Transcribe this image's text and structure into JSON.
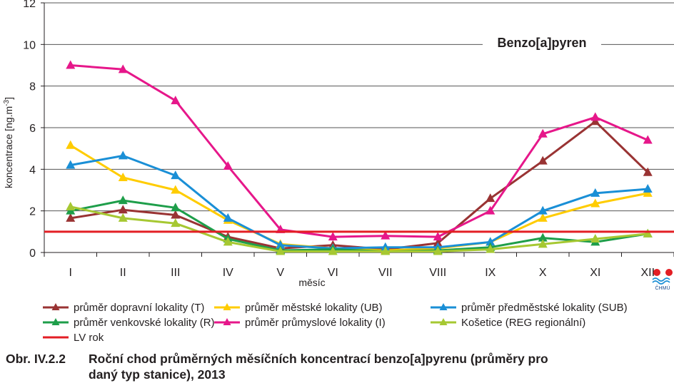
{
  "chart_data": {
    "type": "line",
    "annotation": "Benzo[a]pyren",
    "xlabel": "měsíc",
    "ylabel": "koncentrace [ng.m-3]",
    "ylabel_base": "koncentrace [ng.m",
    "ylabel_exp": "-3",
    "ylabel_close": "]",
    "ylim": [
      0,
      12
    ],
    "yticks": [
      0,
      2,
      4,
      6,
      8,
      10,
      12
    ],
    "grid": "horizontal",
    "legend_position": "bottom",
    "categories": [
      "I",
      "II",
      "III",
      "IV",
      "V",
      "VI",
      "VII",
      "VIII",
      "IX",
      "X",
      "XI",
      "XII"
    ],
    "series": [
      {
        "name": "průměr dopravní lokality (T)",
        "color": "#993333",
        "values": [
          1.65,
          2.05,
          1.8,
          0.75,
          0.2,
          0.35,
          0.15,
          0.45,
          2.6,
          4.4,
          6.3,
          3.85
        ]
      },
      {
        "name": "průměr městské lokality (UB)",
        "color": "#ffcc00",
        "values": [
          5.15,
          3.6,
          3.0,
          1.55,
          0.4,
          0.2,
          0.1,
          0.2,
          0.5,
          1.65,
          2.35,
          2.85
        ]
      },
      {
        "name": "průměr předměstské lokality (SUB)",
        "color": "#1a8fd6",
        "values": [
          4.2,
          4.65,
          3.7,
          1.65,
          0.35,
          0.2,
          0.25,
          0.25,
          0.5,
          2.0,
          2.85,
          3.05
        ]
      },
      {
        "name": "průměr venkovské lokality (R)",
        "color": "#1e9e4a",
        "values": [
          2.0,
          2.5,
          2.15,
          0.65,
          0.1,
          0.15,
          0.05,
          0.1,
          0.25,
          0.7,
          0.5,
          0.9
        ]
      },
      {
        "name": "průměr průmyslové lokality (I)",
        "color": "#e6178a",
        "values": [
          9.0,
          8.8,
          7.3,
          4.15,
          1.1,
          0.75,
          0.8,
          0.75,
          2.0,
          5.7,
          6.5,
          5.4
        ]
      },
      {
        "name": "Košetice (REG regionální)",
        "color": "#a6c832",
        "values": [
          2.2,
          1.65,
          1.4,
          0.5,
          0.05,
          0.05,
          0.05,
          0.05,
          0.15,
          0.4,
          0.65,
          0.9
        ]
      }
    ],
    "reference_line": {
      "name": "LV rok",
      "value": 1.0,
      "color": "#e31e24"
    }
  },
  "logo": {
    "text": "ČHMÚ"
  },
  "caption": {
    "number": "Obr. IV.2.2",
    "line1": "Roční chod průměrných měsíčních koncentrací benzo[a]pyrenu (průměry pro",
    "line2": "daný typ stanice), 2013"
  }
}
